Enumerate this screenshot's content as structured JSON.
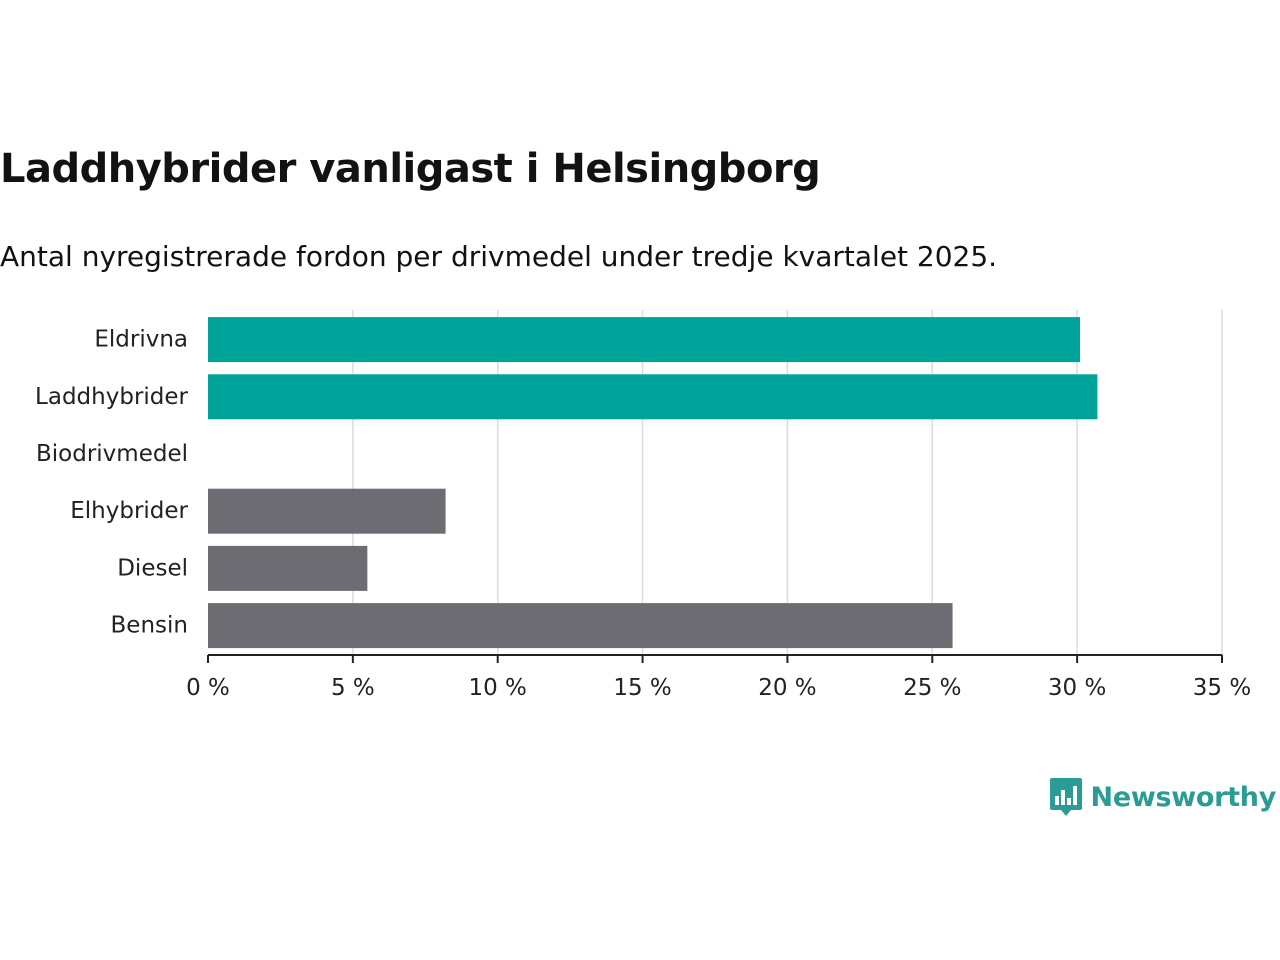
{
  "title": "Laddhybrider vanligast i Helsingborg",
  "subtitle": "Antal nyregistrerade fordon per drivmedel under tredje kvartalet 2025.",
  "brand": {
    "name": "Newsworthy",
    "color": "#2b9c95"
  },
  "colors": {
    "highlight": "#00a39a",
    "default": "#6d6c73",
    "grid": "#dcdcdc",
    "axis": "#222222"
  },
  "chart_data": {
    "type": "bar",
    "orientation": "horizontal",
    "categories": [
      "Eldrivna",
      "Laddhybrider",
      "Biodrivmedel",
      "Elhybrider",
      "Diesel",
      "Bensin"
    ],
    "values": [
      30.1,
      30.7,
      0,
      8.2,
      5.5,
      25.7
    ],
    "highlighted": [
      true,
      true,
      false,
      false,
      false,
      false
    ],
    "xlim": [
      0,
      35
    ],
    "xticks": [
      0,
      5,
      10,
      15,
      20,
      25,
      30,
      35
    ],
    "xtick_labels": [
      "0 %",
      "5 %",
      "10 %",
      "15 %",
      "20 %",
      "25 %",
      "30 %",
      "35 %"
    ],
    "grid": true,
    "unit": "%"
  }
}
